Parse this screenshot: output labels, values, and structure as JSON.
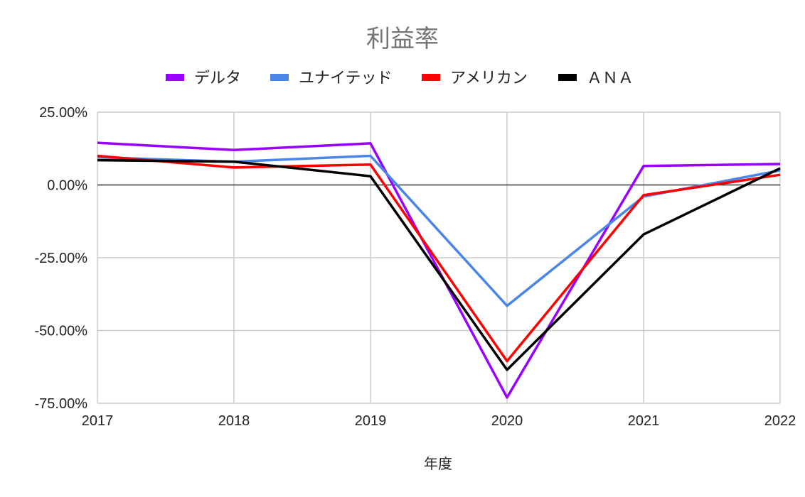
{
  "chart_data": {
    "type": "line",
    "title": "利益率",
    "xlabel": "年度",
    "ylabel": "",
    "legend_position": "top",
    "grid": true,
    "categories": [
      "2017",
      "2018",
      "2019",
      "2020",
      "2021",
      "2022"
    ],
    "ylim": [
      -0.75,
      0.25
    ],
    "y_ticks": [
      0.25,
      0,
      -0.25,
      -0.5,
      -0.75
    ],
    "y_tick_labels": [
      "25.00%",
      "0.00%",
      "-25.00%",
      "-50.00%",
      "-75.00%"
    ],
    "series": [
      {
        "name": "デルタ",
        "color": "#9900ff",
        "values": [
          0.145,
          0.12,
          0.143,
          -0.73,
          0.065,
          0.072
        ]
      },
      {
        "name": "ユナイテッド",
        "color": "#4a86e8",
        "values": [
          0.095,
          0.08,
          0.1,
          -0.415,
          -0.04,
          0.05
        ]
      },
      {
        "name": "アメリカン",
        "color": "#ff0000",
        "values": [
          0.1,
          0.06,
          0.07,
          -0.605,
          -0.035,
          0.035
        ]
      },
      {
        "name": "ＡＮＡ",
        "color": "#000000",
        "values": [
          0.085,
          0.08,
          0.03,
          -0.635,
          -0.17,
          0.057
        ]
      }
    ]
  }
}
